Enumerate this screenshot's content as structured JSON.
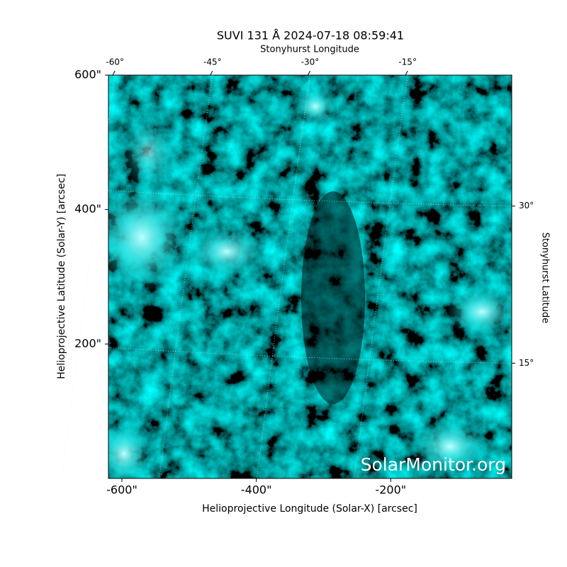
{
  "chart_data": {
    "type": "image",
    "title": "SUVI 131 Å 2024-07-18 08:59:41",
    "xlabel": "Helioprojective Longitude (Solar-X) [arcsec]",
    "ylabel": "Helioprojective Latitude (Solar-Y) [arcsec]",
    "x2label": "Stonyhurst Longitude",
    "y2label": "Stonyhurst Latitude",
    "watermark": "SolarMonitor.org",
    "xlim": [
      -620,
      -20
    ],
    "ylim": [
      0,
      600
    ],
    "xticks": [
      {
        "value": -600,
        "label": "-600\""
      },
      {
        "value": -400,
        "label": "-400\""
      },
      {
        "value": -200,
        "label": "-200\""
      }
    ],
    "yticks": [
      {
        "value": 600,
        "label": "600\""
      },
      {
        "value": 400,
        "label": "400\""
      },
      {
        "value": 200,
        "label": "200\""
      }
    ],
    "x2lim": [
      -61,
      1
    ],
    "x2ticks": [
      {
        "value": -60,
        "label": "-60°"
      },
      {
        "value": -45,
        "label": "-45°"
      },
      {
        "value": -30,
        "label": "-30°"
      },
      {
        "value": -15,
        "label": "-15°"
      }
    ],
    "y2lim": [
      4,
      42.5
    ],
    "y2ticks": [
      {
        "value": 30,
        "label": "30°"
      },
      {
        "value": 15,
        "label": "15°"
      }
    ],
    "grid": true
  }
}
